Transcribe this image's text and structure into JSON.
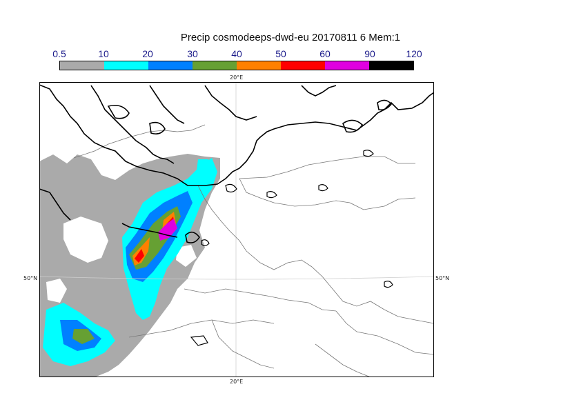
{
  "title": "Precip cosmodeeps-dwd-eu 20170811 6 Mem:1",
  "legend": {
    "labels": [
      "0.5",
      "10",
      "20",
      "30",
      "40",
      "50",
      "60",
      "90",
      "120"
    ],
    "colors": [
      "#aaaaaa",
      "#00ffff",
      "#0080ff",
      "#66a033",
      "#ff8000",
      "#ff0000",
      "#e000e0",
      "#000000"
    ]
  },
  "map": {
    "lon_top": "20°E",
    "lon_bottom": "20°E",
    "lat_left": "50°N",
    "lat_right": "50°N"
  }
}
